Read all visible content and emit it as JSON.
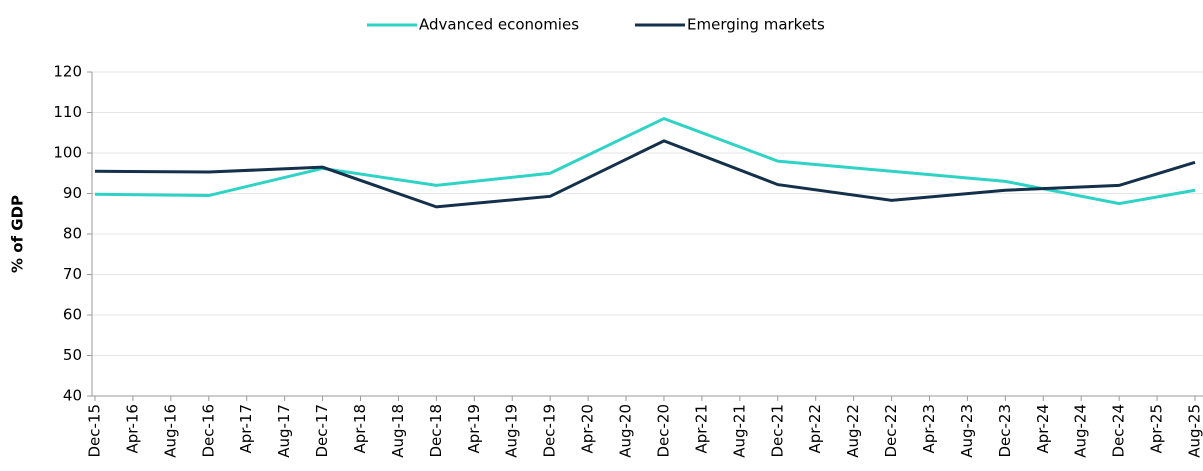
{
  "chart_data": {
    "type": "line",
    "y_label": "% of GDP",
    "categories": [
      "Dec-15",
      "Apr-16",
      "Aug-16",
      "Dec-16",
      "Apr-17",
      "Aug-17",
      "Dec-17",
      "Apr-18",
      "Aug-18",
      "Dec-18",
      "Apr-19",
      "Aug-19",
      "Dec-19",
      "Apr-20",
      "Aug-20",
      "Dec-20",
      "Apr-21",
      "Aug-21",
      "Dec-21",
      "Apr-22",
      "Aug-22",
      "Dec-22",
      "Apr-23",
      "Aug-23",
      "Dec-23",
      "Apr-24",
      "Aug-24",
      "Dec-24",
      "Apr-25",
      "Aug-25"
    ],
    "series": [
      {
        "name": "Advanced economies",
        "color": "#2ed3c6",
        "x": [
          "Dec-15",
          "Dec-16",
          "Dec-17",
          "Dec-18",
          "Dec-19",
          "Dec-20",
          "Dec-21",
          "Dec-22",
          "Dec-23",
          "Dec-24",
          "Aug-25"
        ],
        "values": [
          89.8,
          89.5,
          96.2,
          92,
          95,
          108.5,
          98,
          95.5,
          93,
          87.5,
          90.8
        ]
      },
      {
        "name": "Emerging markets",
        "color": "#14304a",
        "x": [
          "Dec-15",
          "Dec-16",
          "Dec-17",
          "Dec-18",
          "Dec-19",
          "Dec-20",
          "Dec-21",
          "Dec-22",
          "Dec-23",
          "Dec-24",
          "Aug-25"
        ],
        "values": [
          95.5,
          95.3,
          96.5,
          86.7,
          89.3,
          103,
          92.2,
          88.3,
          90.8,
          92,
          97.7
        ]
      }
    ],
    "ylim": [
      40,
      120
    ],
    "yticks": [
      40,
      50,
      60,
      70,
      80,
      90,
      100,
      110,
      120
    ],
    "grid": true,
    "legend": "top"
  }
}
